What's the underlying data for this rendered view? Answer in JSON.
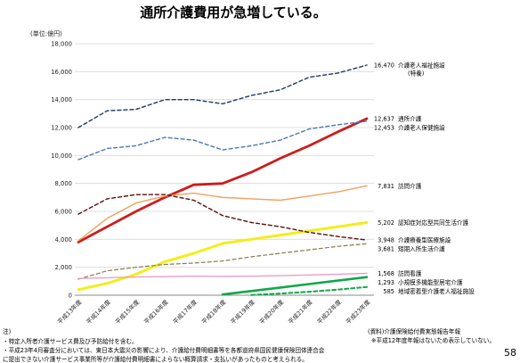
{
  "title": "通所介護費用が急増している。",
  "page_number": "58",
  "footer": {
    "heading": "注)",
    "notes": [
      "・特定入所者介護サービス費及び予防給付を含む。",
      "・平成23年4月審査分においては、東日本大震災の影響により、介護給付費明細書等を各都道府県国民健康保険団体連合会",
      "に提出できない介護サービス事業所等が介護給付費明細書によらない概算請求・支払いがあったものと考えられる。"
    ],
    "source": "(資料)介護保険給付費実態報告年報",
    "source_note": "※平成12年度年報はないため表示していない。"
  },
  "chart_data": {
    "type": "line",
    "ylabel": "(単位:億円)",
    "ylim": [
      0,
      18000
    ],
    "yticks": [
      0,
      2000,
      4000,
      6000,
      8000,
      10000,
      12000,
      14000,
      16000,
      18000
    ],
    "ytick_labels": [
      "0",
      "2,000",
      "4,000",
      "6,000",
      "8,000",
      "10,000",
      "12,000",
      "14,000",
      "16,000",
      "18,000"
    ],
    "categories": [
      "平成13年度",
      "平成14年度",
      "平成15年度",
      "平成16年度",
      "平成17年度",
      "平成18年度",
      "平成19年度",
      "平成20年度",
      "平成21年度",
      "平成22年度",
      "平成23年度"
    ],
    "grid": "horizontal",
    "legend": "end-of-line labels",
    "series": [
      {
        "name": "介護老人福祉施設",
        "sub": "(特養)",
        "end_label": "16,470",
        "color": "#1f3864",
        "dashed": true,
        "width": 1.4,
        "values": [
          12000,
          13200,
          13300,
          14000,
          14000,
          13700,
          14300,
          14700,
          15600,
          15900,
          16470
        ]
      },
      {
        "name": "通所介護",
        "end_label": "12,637",
        "color": "#cc1c1c",
        "dashed": false,
        "width": 2.8,
        "values": [
          3800,
          4900,
          6000,
          7000,
          7900,
          8000,
          8800,
          9800,
          10700,
          11700,
          12637
        ]
      },
      {
        "name": "介護老人保健施設",
        "end_label": "12,453",
        "color": "#4a78b8",
        "dashed": true,
        "width": 1.4,
        "values": [
          9700,
          10500,
          10700,
          11300,
          11100,
          10400,
          10700,
          11100,
          11900,
          12200,
          12453
        ]
      },
      {
        "name": "訪問介護",
        "end_label": "7,831",
        "color": "#f0a060",
        "dashed": false,
        "width": 1.4,
        "values": [
          3900,
          5500,
          6600,
          7100,
          7300,
          7000,
          6900,
          6800,
          7100,
          7400,
          7831
        ]
      },
      {
        "name": "認知症対応型共同生活介護",
        "end_label": "5,202",
        "color": "#f2ee1a",
        "dashed": false,
        "width": 3.0,
        "values": [
          400,
          850,
          1500,
          2400,
          3000,
          3700,
          4000,
          4300,
          4600,
          4900,
          5202
        ]
      },
      {
        "name": "介護療養型医療施設",
        "end_label": "3,948",
        "color": "#5a0f0f",
        "dashed": true,
        "width": 1.4,
        "values": [
          5800,
          6900,
          7200,
          7200,
          6800,
          5700,
          5200,
          4900,
          4500,
          4200,
          3948
        ]
      },
      {
        "name": "短期入所生活介護",
        "end_label": "3,681",
        "color": "#8a7a50",
        "dashed": true,
        "width": 1.2,
        "values": [
          1150,
          1750,
          2000,
          2200,
          2300,
          2450,
          2750,
          3000,
          3250,
          3500,
          3681
        ]
      },
      {
        "name": "訪問看護",
        "end_label": "1,568",
        "color": "#e8a0c8",
        "dashed": false,
        "width": 1.4,
        "values": [
          1200,
          1250,
          1300,
          1330,
          1360,
          1350,
          1360,
          1400,
          1450,
          1500,
          1568
        ]
      },
      {
        "name": "小規模多機能型居宅介護",
        "end_label": "1,293",
        "color": "#11a84a",
        "dashed": false,
        "width": 2.6,
        "values": [
          null,
          null,
          null,
          null,
          null,
          50,
          300,
          550,
          800,
          1050,
          1293
        ]
      },
      {
        "name": "地域密着型介護老人福祉施設",
        "end_label": "585",
        "color": "#11a84a",
        "dashed": true,
        "width": 2.0,
        "values": [
          null,
          null,
          null,
          null,
          null,
          null,
          20,
          120,
          250,
          400,
          585
        ]
      }
    ]
  }
}
